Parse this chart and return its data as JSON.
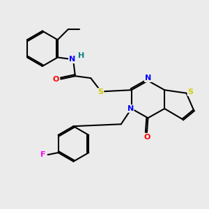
{
  "background_color": "#ebebeb",
  "bond_color": "#000000",
  "atom_colors": {
    "N": "#0000ff",
    "O": "#ff0000",
    "S": "#cccc00",
    "F": "#ff00ff",
    "H": "#008080",
    "C": "#000000"
  },
  "figsize": [
    3.0,
    3.0
  ],
  "dpi": 100
}
